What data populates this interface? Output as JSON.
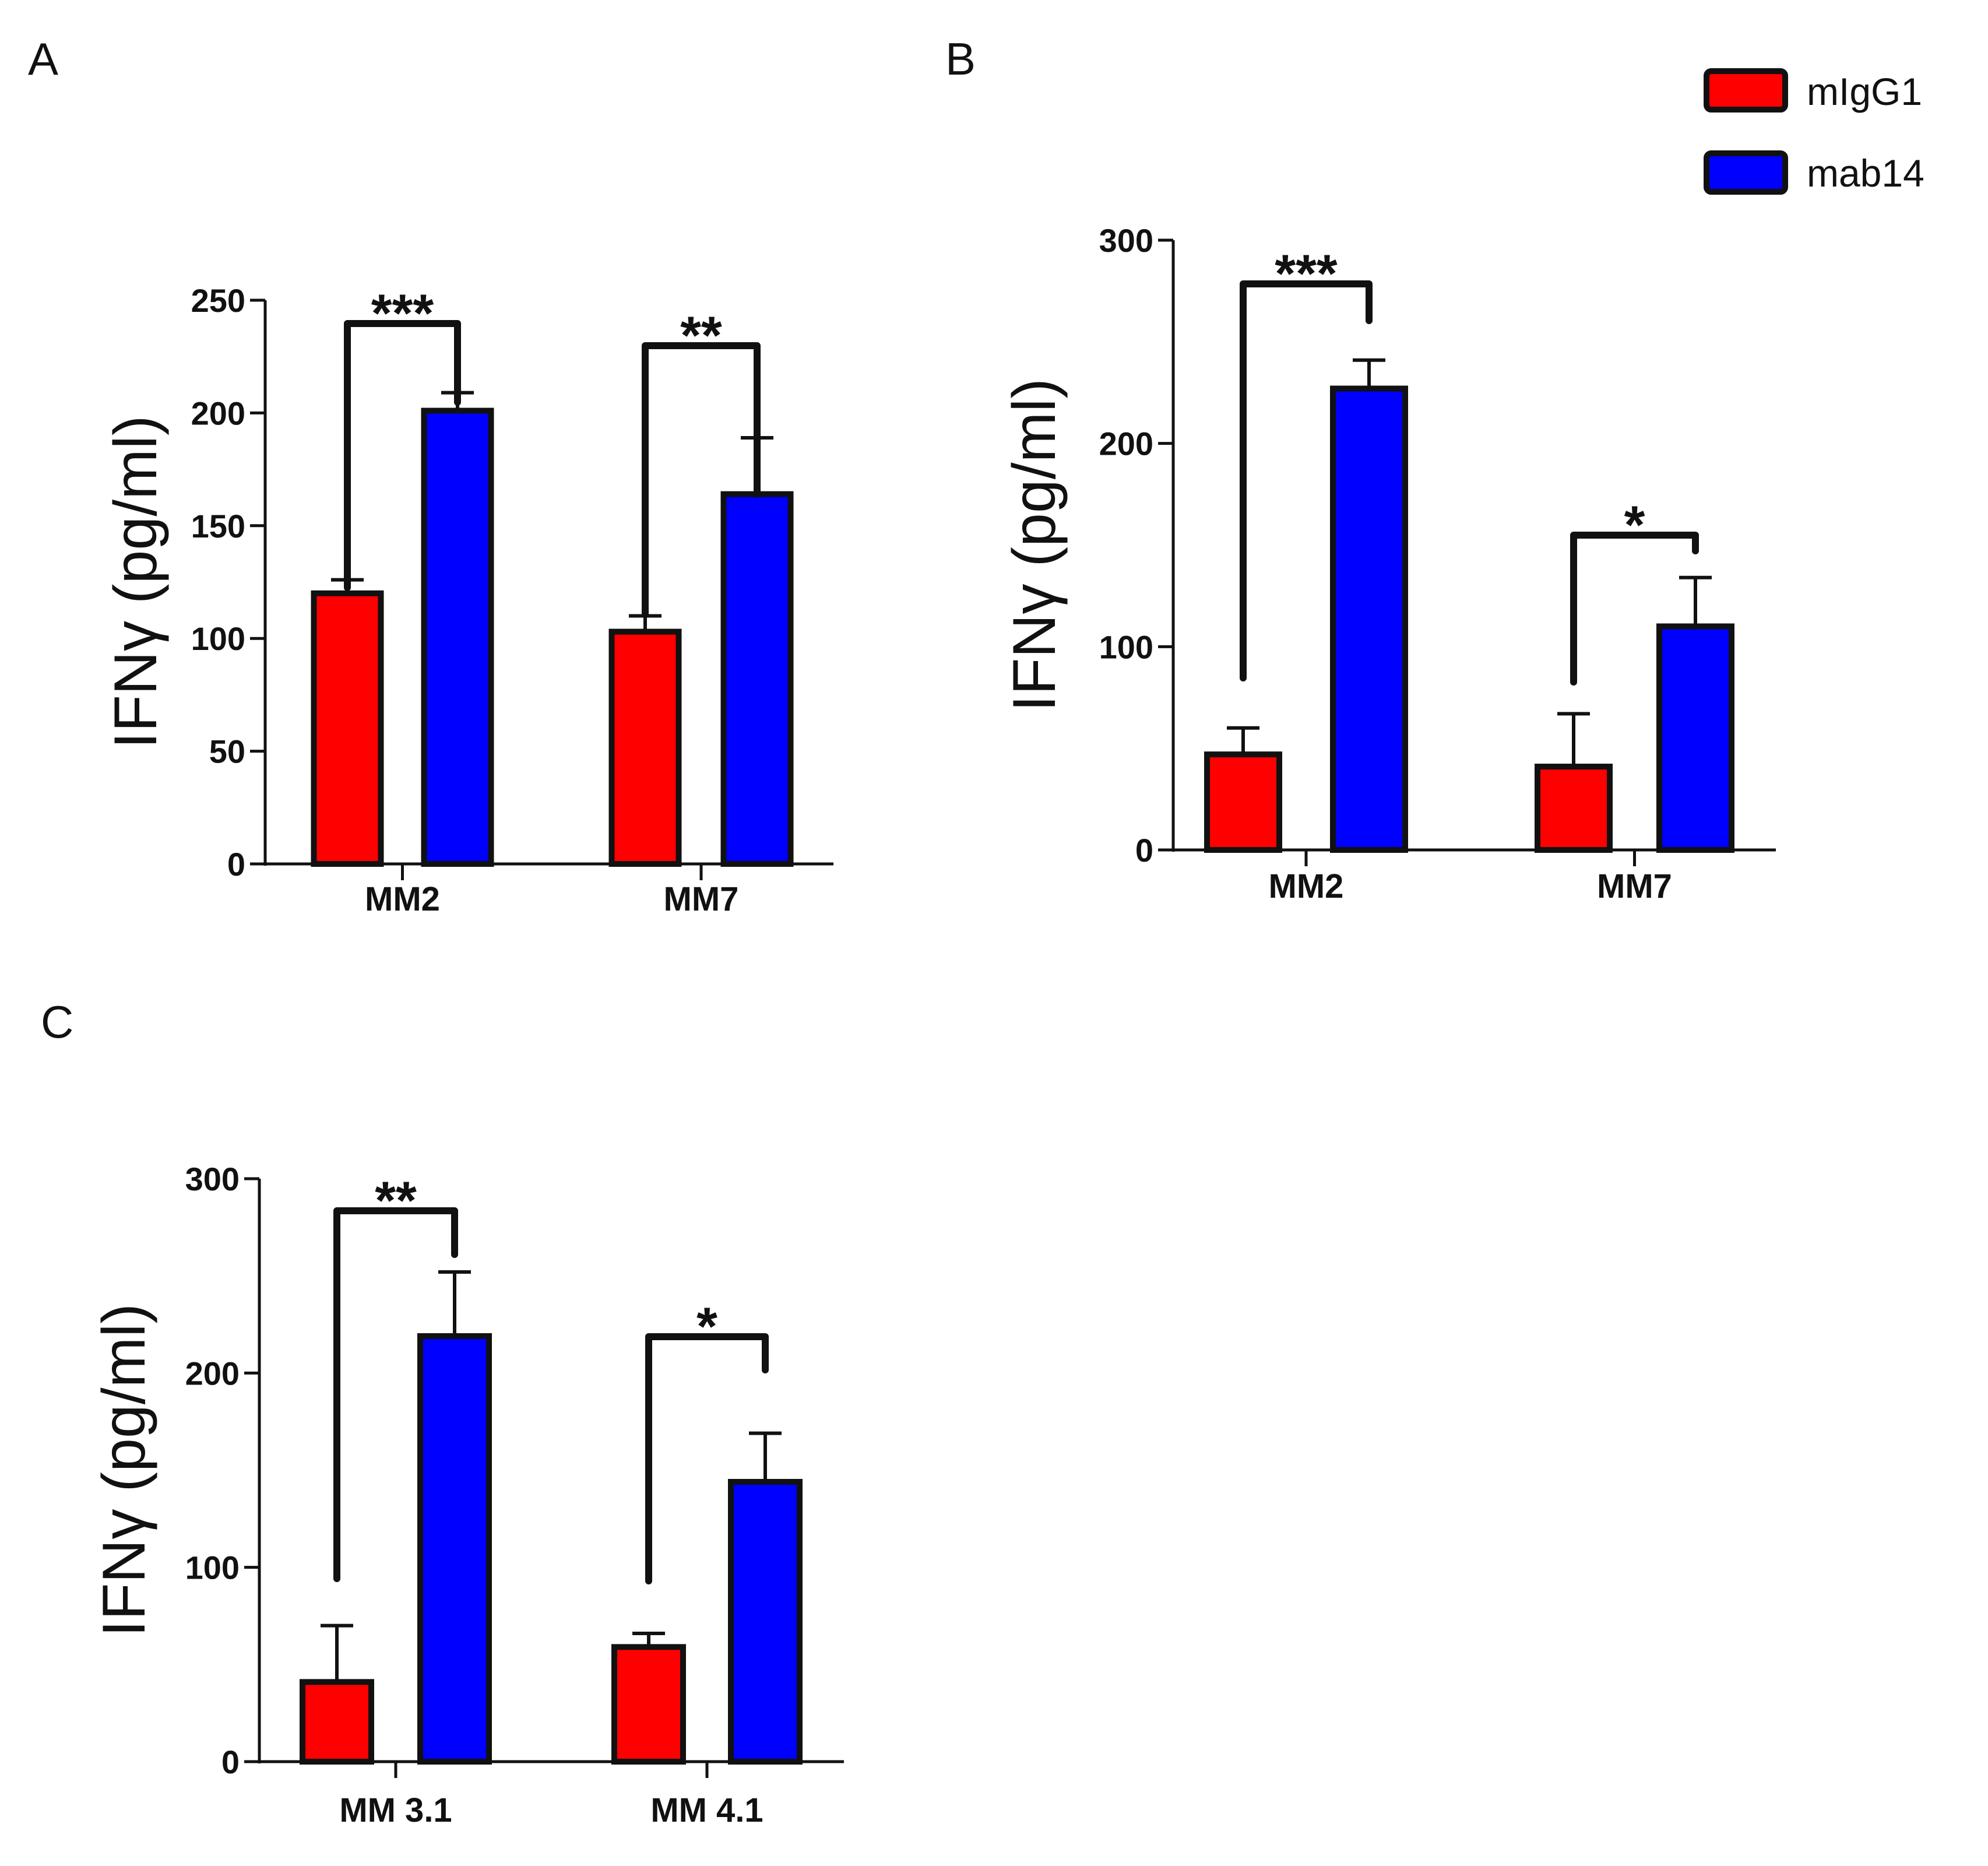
{
  "legend": {
    "entries": [
      {
        "label": "mIgG1",
        "color": "#ff0000"
      },
      {
        "label": "mab14",
        "color": "#0000ff"
      }
    ]
  },
  "chart_data": [
    {
      "panel": "A",
      "type": "bar",
      "categories": [
        "MM2",
        "MM7"
      ],
      "ylabel": "IFNγ (pg/ml)",
      "ylim": [
        0,
        250
      ],
      "yticks": [
        0,
        50,
        100,
        150,
        200,
        250
      ],
      "series": [
        {
          "name": "mIgG1",
          "color": "#ff0000",
          "values": [
            120,
            103
          ],
          "errors": [
            6,
            7
          ]
        },
        {
          "name": "mab14",
          "color": "#0000ff",
          "values": [
            201,
            164
          ],
          "errors": [
            8,
            25
          ]
        }
      ],
      "significance": [
        "***",
        "**"
      ]
    },
    {
      "panel": "B",
      "type": "bar",
      "categories": [
        "MM2",
        "MM7"
      ],
      "ylabel": "IFNγ (pg/ml)",
      "ylim": [
        0,
        300
      ],
      "yticks": [
        0,
        100,
        200,
        300
      ],
      "series": [
        {
          "name": "mIgG1",
          "color": "#ff0000",
          "values": [
            47,
            41
          ],
          "errors": [
            13,
            26
          ]
        },
        {
          "name": "mab14",
          "color": "#0000ff",
          "values": [
            227,
            110
          ],
          "errors": [
            14,
            24
          ]
        }
      ],
      "significance": [
        "***",
        "*"
      ]
    },
    {
      "panel": "C",
      "type": "bar",
      "categories": [
        "MM 3.1",
        "MM 4.1"
      ],
      "ylabel": "IFNγ (pg/ml)",
      "ylim": [
        0,
        300
      ],
      "yticks": [
        0,
        100,
        200,
        300
      ],
      "series": [
        {
          "name": "mIgG1",
          "color": "#ff0000",
          "values": [
            41,
            59
          ],
          "errors": [
            29,
            7
          ]
        },
        {
          "name": "mab14",
          "color": "#0000ff",
          "values": [
            219,
            144
          ],
          "errors": [
            33,
            25
          ]
        }
      ],
      "significance": [
        "**",
        "*"
      ]
    }
  ]
}
